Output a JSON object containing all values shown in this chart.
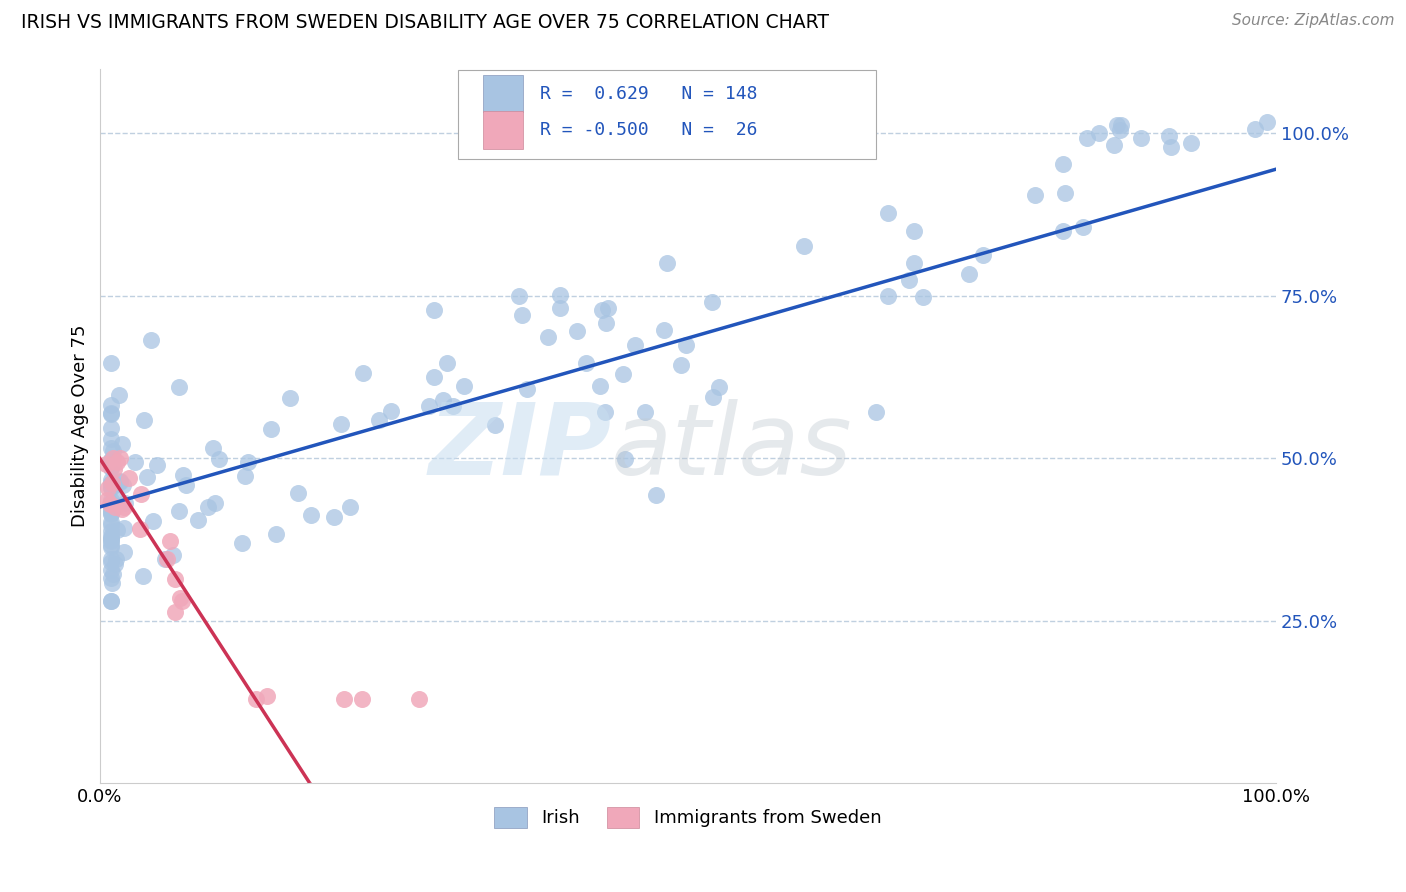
{
  "title": "IRISH VS IMMIGRANTS FROM SWEDEN DISABILITY AGE OVER 75 CORRELATION CHART",
  "source": "Source: ZipAtlas.com",
  "ylabel": "Disability Age Over 75",
  "legend_label_blue": "Irish",
  "legend_label_pink": "Immigrants from Sweden",
  "R_blue": 0.629,
  "N_blue": 148,
  "R_pink": -0.5,
  "N_pink": 26,
  "blue_color": "#a8c4e2",
  "blue_line_color": "#2255bb",
  "pink_color": "#f0a8ba",
  "pink_line_color": "#cc3355",
  "pink_line_dash": "#e8b8c8",
  "background_color": "#ffffff",
  "grid_color": "#c0d0e0",
  "ymin": 0.0,
  "ymax": 1.1,
  "xmin": 0.0,
  "xmax": 1.0,
  "yticks": [
    0.25,
    0.5,
    0.75,
    1.0
  ],
  "ytick_labels": [
    "25.0%",
    "50.0%",
    "75.0%",
    "100.0%"
  ],
  "xtick_labels": [
    "0.0%",
    "100.0%"
  ]
}
